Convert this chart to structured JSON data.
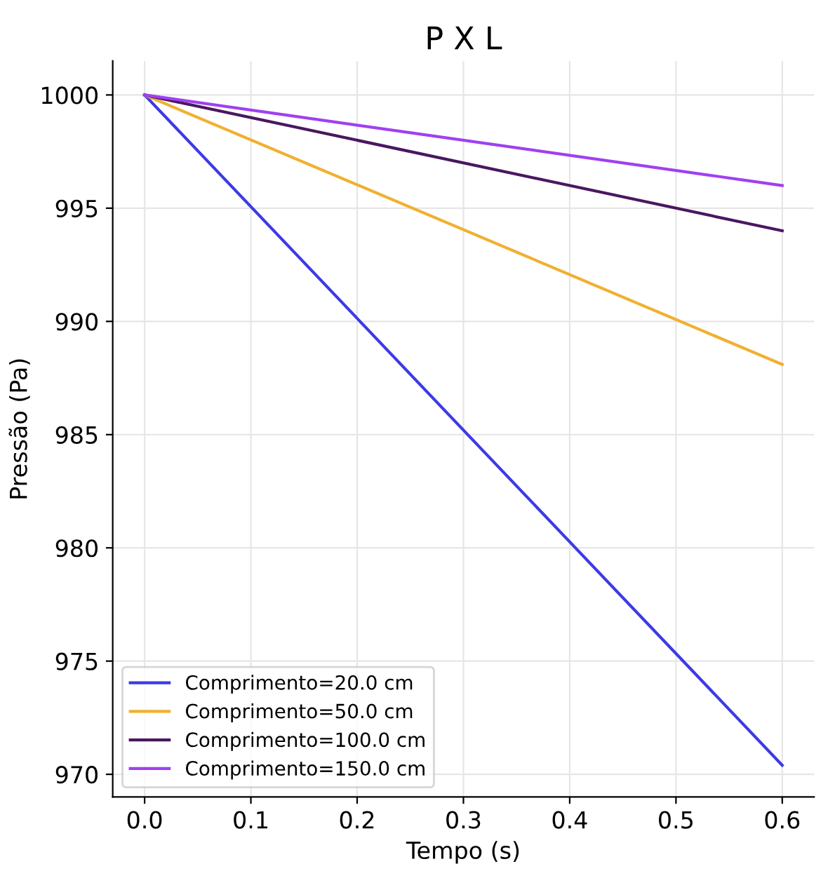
{
  "chart_data": {
    "type": "line",
    "title": "P X L",
    "xlabel": "Tempo (s)",
    "ylabel": "Pressão (Pa)",
    "x": [
      0,
      0.6
    ],
    "series": [
      {
        "name": "Comprimento=20.0 cm",
        "color": "#3b3be6",
        "values": [
          1000,
          970.4
        ]
      },
      {
        "name": "Comprimento=50.0 cm",
        "color": "#f0b030",
        "values": [
          1000,
          988.1
        ]
      },
      {
        "name": "Comprimento=100.0 cm",
        "color": "#4a1760",
        "values": [
          1000,
          994.0
        ]
      },
      {
        "name": "Comprimento=150.0 cm",
        "color": "#a040f0",
        "values": [
          1000,
          996.0
        ]
      }
    ],
    "xlim": [
      -0.03,
      0.63
    ],
    "ylim": [
      969,
      1001.5
    ],
    "xticks": [
      {
        "value": 0,
        "label": "0.0"
      },
      0.1,
      0.2,
      0.3,
      0.4,
      0.5,
      0.6
    ],
    "yticks": [
      970,
      975,
      980,
      985,
      990,
      995,
      1000
    ],
    "grid": true,
    "legend": "bottom left",
    "marker": "none",
    "line_style": "solid"
  }
}
